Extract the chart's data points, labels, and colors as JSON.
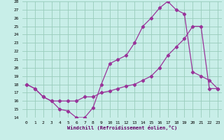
{
  "xlabel": "Windchill (Refroidissement éolien,°C)",
  "background_color": "#c8eee8",
  "grid_color": "#99ccbb",
  "line_color": "#993399",
  "x_hours": [
    0,
    1,
    2,
    3,
    4,
    5,
    6,
    7,
    8,
    9,
    10,
    11,
    12,
    13,
    14,
    15,
    16,
    17,
    18,
    19,
    20,
    21,
    22,
    23
  ],
  "temp_line": [
    18.0,
    17.5,
    16.5,
    16.0,
    15.0,
    14.8,
    14.0,
    14.0,
    15.2,
    18.0,
    20.5,
    21.0,
    21.5,
    23.0,
    25.0,
    26.0,
    27.2,
    28.0,
    27.0,
    26.5,
    19.5,
    19.0,
    18.5,
    17.5
  ],
  "windchill_line": [
    18.0,
    17.5,
    16.5,
    16.0,
    16.0,
    16.0,
    16.0,
    16.5,
    16.5,
    17.0,
    17.2,
    17.5,
    17.8,
    18.0,
    18.5,
    19.0,
    20.0,
    21.5,
    22.5,
    23.5,
    25.0,
    25.0,
    17.5,
    17.5
  ],
  "ylim": [
    14,
    28
  ],
  "yticks": [
    14,
    15,
    16,
    17,
    18,
    19,
    20,
    21,
    22,
    23,
    24,
    25,
    26,
    27,
    28
  ],
  "xticks": [
    0,
    1,
    2,
    3,
    4,
    5,
    6,
    7,
    8,
    9,
    10,
    11,
    12,
    13,
    14,
    15,
    16,
    17,
    18,
    19,
    20,
    21,
    22,
    23
  ]
}
